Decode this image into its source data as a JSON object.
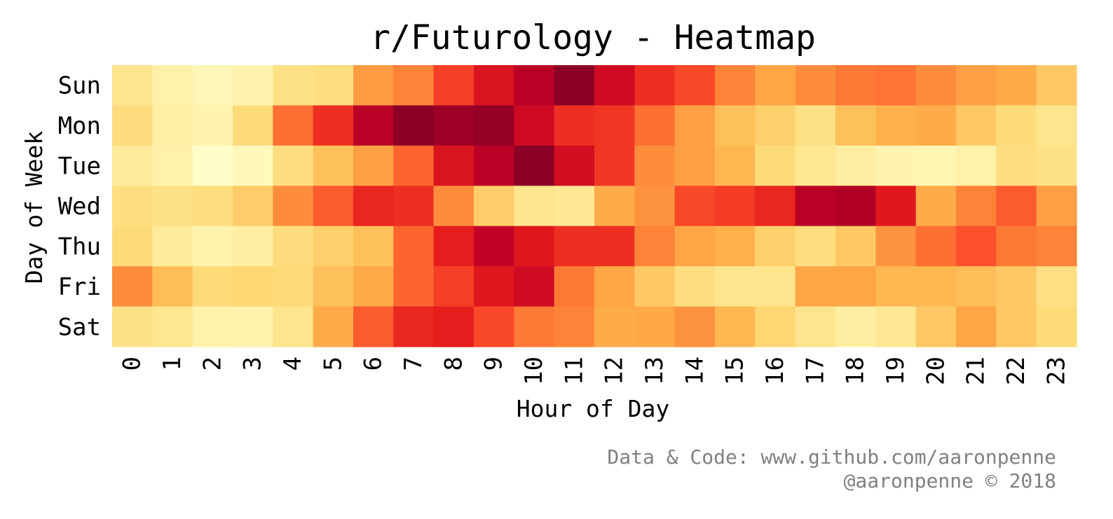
{
  "chart_data": {
    "type": "heatmap",
    "title": "r/Futurology - Heatmap",
    "xlabel": "Hour of Day",
    "ylabel": "Day of Week",
    "x_categories": [
      "0",
      "1",
      "2",
      "3",
      "4",
      "5",
      "6",
      "7",
      "8",
      "9",
      "10",
      "11",
      "12",
      "13",
      "14",
      "15",
      "16",
      "17",
      "18",
      "19",
      "20",
      "21",
      "22",
      "23"
    ],
    "y_categories": [
      "Sun",
      "Mon",
      "Tue",
      "Wed",
      "Thu",
      "Fri",
      "Sat"
    ],
    "colormap": "YlOrRd",
    "value_range": [
      0,
      1
    ],
    "values": [
      [
        0.18,
        0.1,
        0.06,
        0.08,
        0.2,
        0.22,
        0.45,
        0.52,
        0.66,
        0.78,
        0.88,
        0.98,
        0.82,
        0.7,
        0.64,
        0.52,
        0.42,
        0.5,
        0.54,
        0.55,
        0.5,
        0.44,
        0.4,
        0.3
      ],
      [
        0.23,
        0.11,
        0.08,
        0.24,
        0.56,
        0.7,
        0.88,
        0.98,
        0.94,
        0.96,
        0.82,
        0.7,
        0.68,
        0.56,
        0.44,
        0.33,
        0.28,
        0.2,
        0.33,
        0.38,
        0.4,
        0.3,
        0.24,
        0.18
      ],
      [
        0.14,
        0.1,
        0.01,
        0.05,
        0.22,
        0.33,
        0.44,
        0.58,
        0.78,
        0.88,
        0.98,
        0.81,
        0.68,
        0.5,
        0.44,
        0.36,
        0.24,
        0.17,
        0.12,
        0.08,
        0.07,
        0.1,
        0.22,
        0.2
      ],
      [
        0.22,
        0.2,
        0.22,
        0.29,
        0.5,
        0.6,
        0.72,
        0.7,
        0.5,
        0.29,
        0.18,
        0.16,
        0.4,
        0.48,
        0.64,
        0.67,
        0.72,
        0.88,
        0.9,
        0.76,
        0.4,
        0.52,
        0.6,
        0.44
      ],
      [
        0.24,
        0.14,
        0.09,
        0.12,
        0.23,
        0.28,
        0.33,
        0.58,
        0.74,
        0.86,
        0.76,
        0.7,
        0.7,
        0.52,
        0.42,
        0.38,
        0.28,
        0.22,
        0.3,
        0.48,
        0.56,
        0.62,
        0.54,
        0.52
      ],
      [
        0.5,
        0.34,
        0.24,
        0.26,
        0.24,
        0.33,
        0.4,
        0.58,
        0.66,
        0.76,
        0.82,
        0.54,
        0.42,
        0.3,
        0.22,
        0.18,
        0.18,
        0.42,
        0.42,
        0.36,
        0.36,
        0.34,
        0.3,
        0.21
      ],
      [
        0.2,
        0.17,
        0.1,
        0.09,
        0.18,
        0.4,
        0.6,
        0.72,
        0.74,
        0.64,
        0.54,
        0.52,
        0.4,
        0.41,
        0.48,
        0.36,
        0.26,
        0.18,
        0.12,
        0.16,
        0.3,
        0.42,
        0.3,
        0.24
      ]
    ],
    "colorbar": false,
    "grid": false
  },
  "footer": {
    "line1": "Data & Code: www.github.com/aaronpenne",
    "line2": "@aaronpenne © 2018"
  }
}
